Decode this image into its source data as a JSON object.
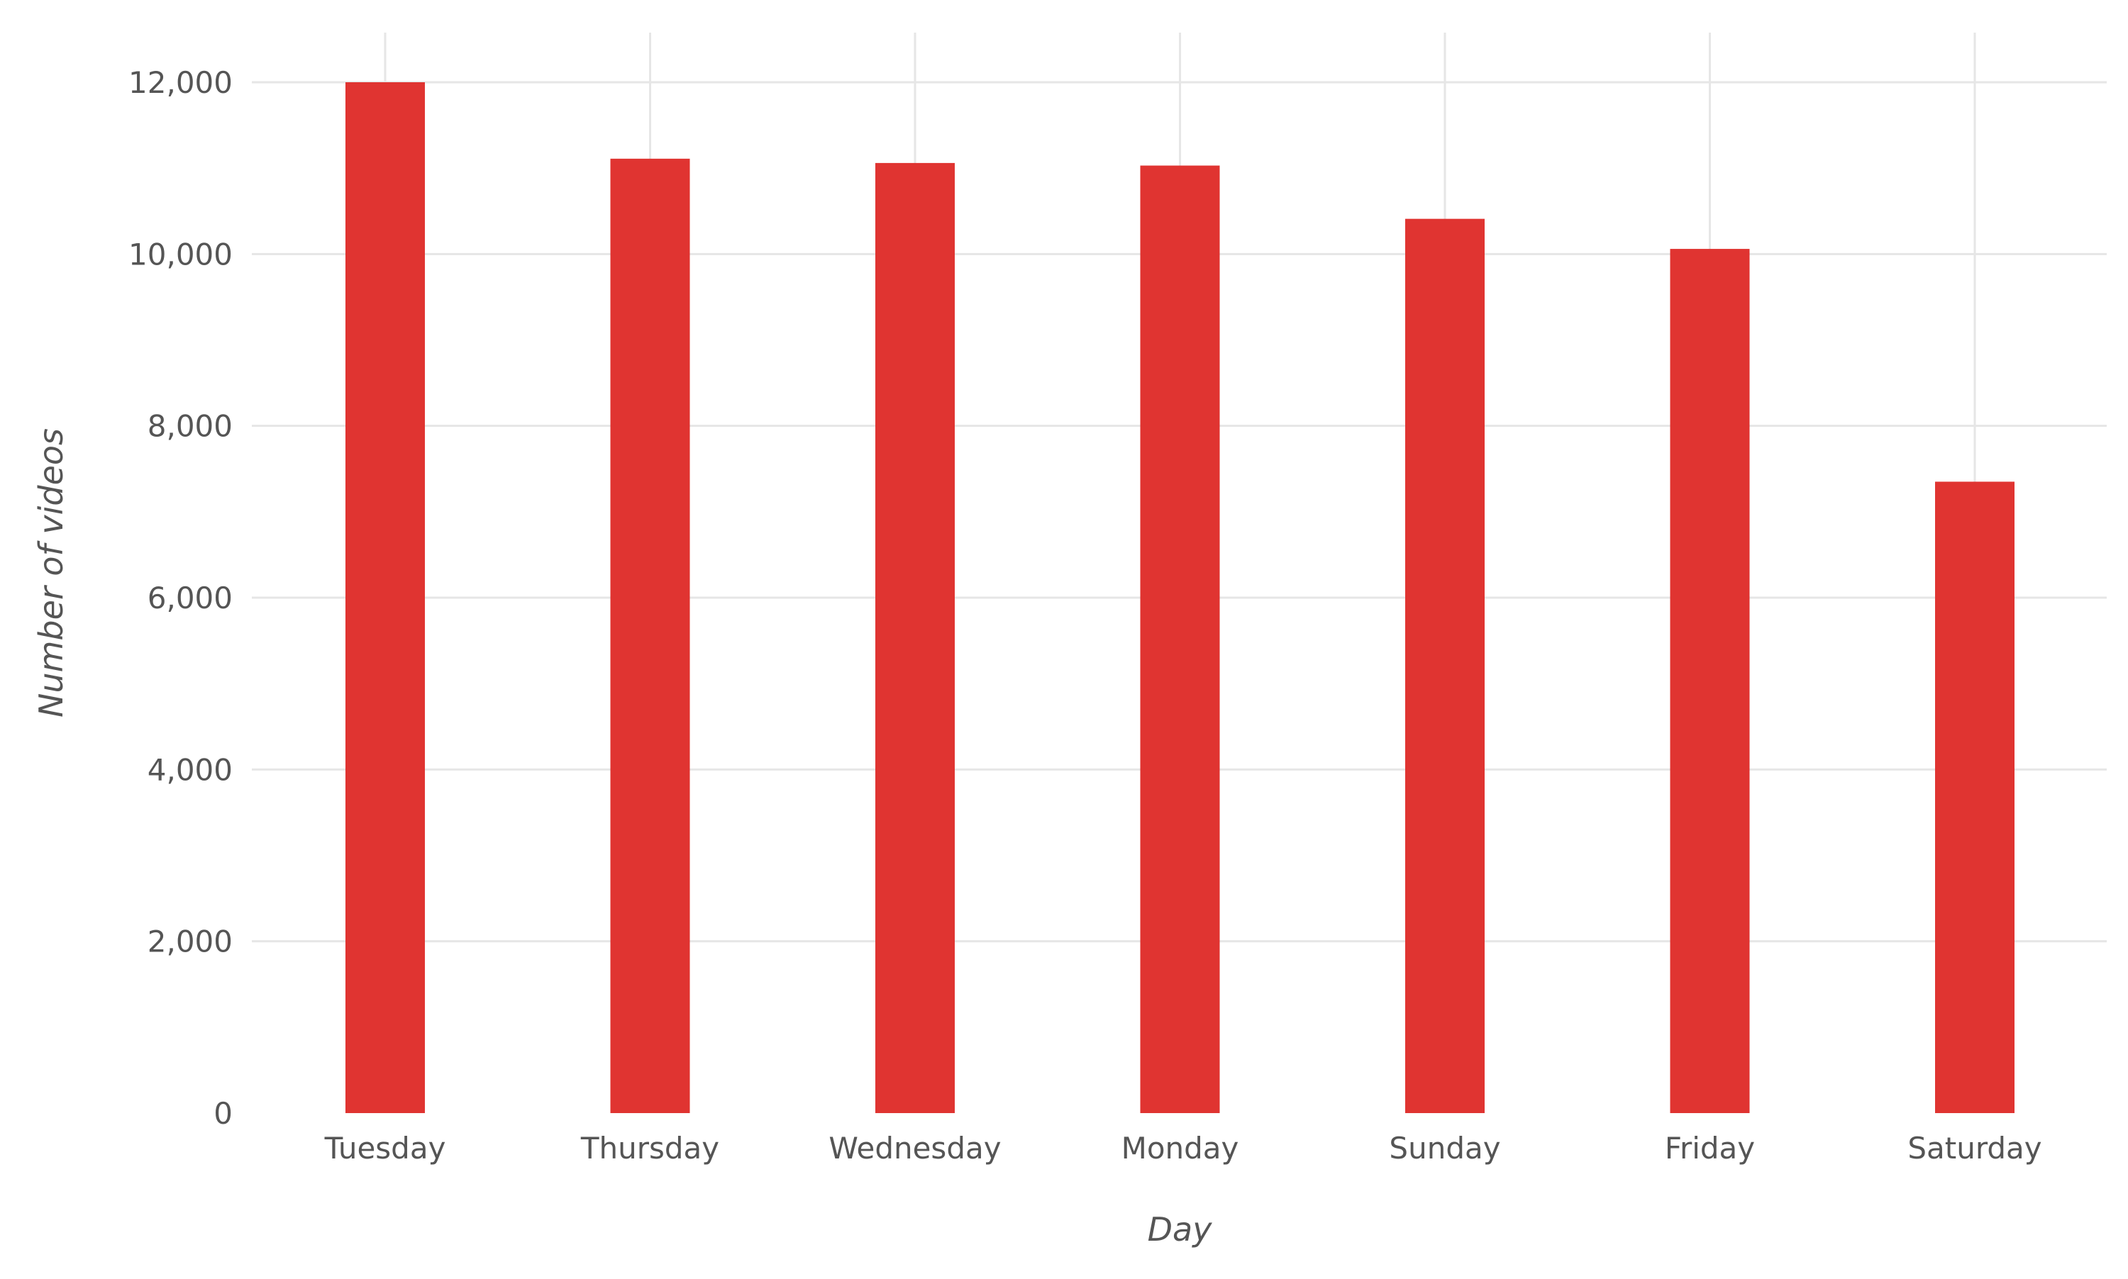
{
  "chart_data": {
    "type": "bar",
    "categories": [
      "Tuesday",
      "Thursday",
      "Wednesday",
      "Monday",
      "Sunday",
      "Friday",
      "Saturday"
    ],
    "values": [
      12000,
      11110,
      11060,
      11030,
      10410,
      10060,
      7350
    ],
    "xlabel": "Day",
    "ylabel": "Number of videos",
    "ylim": [
      0,
      12000
    ],
    "yticks": [
      0,
      2000,
      4000,
      6000,
      8000,
      10000,
      12000
    ],
    "ytick_labels": [
      "0",
      "2,000",
      "4,000",
      "6,000",
      "8,000",
      "10,000",
      "12,000"
    ],
    "bar_color": "#e03431",
    "grid_color": "#e6e6e6",
    "grid": true,
    "legend": "none"
  }
}
